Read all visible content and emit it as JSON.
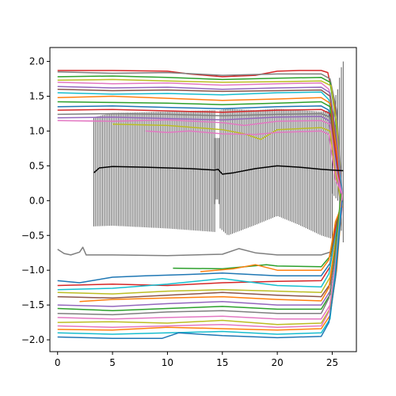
{
  "chart_data": {
    "type": "line",
    "title": "",
    "xlabel": "",
    "ylabel": "",
    "xlim": [
      -0.7,
      27.2
    ],
    "ylim": [
      -2.17,
      2.2
    ],
    "xticks": [
      0,
      5,
      10,
      15,
      20,
      25
    ],
    "yticks": [
      -2.0,
      -1.5,
      -1.0,
      -0.5,
      0.0,
      0.5,
      1.0,
      1.5,
      2.0
    ],
    "xtick_labels": [
      "0",
      "5",
      "10",
      "15",
      "20",
      "25"
    ],
    "ytick_labels": [
      "−2.0",
      "−1.5",
      "−1.0",
      "−0.5",
      "0.0",
      "0.5",
      "1.0",
      "1.5",
      "2.0"
    ],
    "grid": false,
    "legend": "none",
    "palette": [
      "#1f77b4",
      "#ff7f0e",
      "#2ca02c",
      "#d62728",
      "#9467bd",
      "#8c564b",
      "#e377c2",
      "#7f7f7f",
      "#bcbd22",
      "#17becf"
    ],
    "series": [
      {
        "color": "#d62728",
        "x": [
          0,
          5,
          10,
          12,
          15,
          18,
          20,
          22,
          24,
          24.6,
          25.2,
          25.8
        ],
        "y": [
          1.87,
          1.87,
          1.86,
          1.82,
          1.78,
          1.8,
          1.86,
          1.87,
          1.87,
          1.84,
          1.4,
          0.2
        ]
      },
      {
        "color": "#7f7f7f",
        "x": [
          0,
          5,
          10,
          15,
          20,
          24,
          24.8,
          25.4,
          25.9
        ],
        "y": [
          1.85,
          1.83,
          1.84,
          1.8,
          1.82,
          1.82,
          1.75,
          1.3,
          0.1
        ]
      },
      {
        "color": "#2ca02c",
        "x": [
          0,
          5,
          10,
          15,
          20,
          24,
          24.8,
          25.3,
          25.8
        ],
        "y": [
          1.78,
          1.79,
          1.77,
          1.74,
          1.76,
          1.77,
          1.7,
          1.2,
          -0.1
        ]
      },
      {
        "color": "#bcbd22",
        "x": [
          0,
          5,
          10,
          15,
          20,
          24,
          24.9,
          25.4,
          25.9
        ],
        "y": [
          1.73,
          1.74,
          1.72,
          1.7,
          1.71,
          1.72,
          1.65,
          1.1,
          0.0
        ]
      },
      {
        "color": "#e377c2",
        "x": [
          0,
          5,
          10,
          15,
          20,
          24,
          24.7,
          25.3,
          25.8
        ],
        "y": [
          1.7,
          1.68,
          1.69,
          1.66,
          1.68,
          1.69,
          1.6,
          1.0,
          -0.2
        ]
      },
      {
        "color": "#9467bd",
        "x": [
          0,
          5,
          10,
          15,
          20,
          24,
          24.8,
          25.4,
          25.9
        ],
        "y": [
          1.64,
          1.62,
          1.63,
          1.6,
          1.62,
          1.63,
          1.55,
          0.9,
          0.1
        ]
      },
      {
        "color": "#8c564b",
        "x": [
          0,
          5,
          10,
          15,
          20,
          24,
          24.8,
          25.3,
          25.8
        ],
        "y": [
          1.6,
          1.58,
          1.59,
          1.57,
          1.58,
          1.59,
          1.5,
          0.9,
          0.0
        ]
      },
      {
        "color": "#17becf",
        "x": [
          0,
          5,
          10,
          15,
          20,
          24,
          24.7,
          25.3,
          25.9
        ],
        "y": [
          1.55,
          1.53,
          1.54,
          1.52,
          1.55,
          1.56,
          1.45,
          0.8,
          0.1
        ]
      },
      {
        "color": "#ff7f0e",
        "x": [
          0,
          5,
          10,
          15,
          20,
          24,
          24.8,
          25.4,
          25.9
        ],
        "y": [
          1.48,
          1.5,
          1.47,
          1.44,
          1.46,
          1.48,
          1.4,
          0.7,
          -0.1
        ]
      },
      {
        "color": "#2ca02c",
        "x": [
          0,
          5,
          10,
          15,
          20,
          24,
          24.8,
          25.3,
          25.8
        ],
        "y": [
          1.42,
          1.41,
          1.4,
          1.38,
          1.4,
          1.42,
          1.35,
          0.7,
          0.0
        ]
      },
      {
        "color": "#1f77b4",
        "x": [
          0,
          5,
          10,
          15,
          20,
          24,
          24.7,
          25.3,
          25.9
        ],
        "y": [
          1.35,
          1.36,
          1.34,
          1.32,
          1.35,
          1.36,
          1.3,
          0.6,
          0.1
        ]
      },
      {
        "color": "#d62728",
        "x": [
          0,
          5,
          10,
          15,
          20,
          24,
          24.8,
          25.4,
          25.9
        ],
        "y": [
          1.3,
          1.31,
          1.29,
          1.27,
          1.3,
          1.31,
          1.25,
          0.6,
          0.0
        ]
      },
      {
        "color": "#7f7f7f",
        "x": [
          0,
          5,
          10,
          15,
          20,
          24,
          24.8,
          25.3,
          25.8
        ],
        "y": [
          1.24,
          1.25,
          1.24,
          1.22,
          1.24,
          1.25,
          1.2,
          0.5,
          -0.1
        ]
      },
      {
        "color": "#9467bd",
        "x": [
          0,
          5,
          10,
          15,
          20,
          24,
          24.7,
          25.3,
          25.9
        ],
        "y": [
          1.19,
          1.2,
          1.18,
          1.16,
          1.2,
          1.21,
          1.15,
          0.5,
          0.0
        ]
      },
      {
        "color": "#e377c2",
        "x": [
          0,
          5,
          10,
          15,
          17,
          20,
          24,
          24.8,
          25.4,
          25.9
        ],
        "y": [
          1.15,
          1.14,
          1.16,
          1.12,
          1.08,
          1.14,
          1.15,
          1.1,
          0.4,
          0.1
        ]
      },
      {
        "color": "#bcbd22",
        "x": [
          5,
          10,
          15,
          17,
          18.5,
          20,
          24,
          24.8,
          25.3,
          25.8
        ],
        "y": [
          1.1,
          1.08,
          1.02,
          0.96,
          0.88,
          1.02,
          1.05,
          1.0,
          0.4,
          0.0
        ]
      },
      {
        "color": "#e377c2",
        "x": [
          8,
          10,
          12,
          15,
          18,
          20,
          24,
          24.7,
          25.3,
          25.9
        ],
        "y": [
          1.0,
          0.98,
          1.0,
          0.96,
          0.95,
          0.98,
          1.0,
          0.95,
          0.3,
          0.1
        ]
      },
      {
        "color": "#000000",
        "x": [
          3.3,
          3.8,
          5,
          8,
          12,
          14.3,
          14.6,
          15,
          16,
          18,
          20,
          22,
          24,
          25,
          26
        ],
        "y": [
          0.4,
          0.47,
          0.49,
          0.48,
          0.46,
          0.44,
          0.45,
          0.38,
          0.4,
          0.46,
          0.5,
          0.48,
          0.45,
          0.44,
          0.43
        ]
      },
      {
        "color": "#7f7f7f",
        "x": [
          0,
          0.6,
          1.2,
          2.0,
          2.3,
          2.6,
          5,
          10,
          15,
          16.5,
          18,
          20,
          24,
          25,
          25.5,
          25.9
        ],
        "y": [
          -0.7,
          -0.76,
          -0.78,
          -0.74,
          -0.67,
          -0.78,
          -0.78,
          -0.79,
          -0.77,
          -0.69,
          -0.75,
          -0.78,
          -0.78,
          -0.73,
          -0.3,
          0.0
        ]
      },
      {
        "color": "#2ca02c",
        "x": [
          10.5,
          15,
          19,
          20,
          24,
          24.8,
          25.4,
          25.9
        ],
        "y": [
          -0.97,
          -0.98,
          -0.92,
          -0.94,
          -0.95,
          -0.8,
          -0.3,
          0.0
        ]
      },
      {
        "color": "#ff7f0e",
        "x": [
          13,
          16,
          18,
          20,
          24,
          24.7,
          25.3,
          25.8
        ],
        "y": [
          -1.02,
          -0.98,
          -0.92,
          -1.0,
          -1.0,
          -0.85,
          -0.3,
          -0.1
        ]
      },
      {
        "color": "#1f77b4",
        "x": [
          0,
          2,
          5,
          8,
          12,
          15,
          20,
          24,
          24.8,
          25.4,
          25.9
        ],
        "y": [
          -1.15,
          -1.18,
          -1.1,
          -1.08,
          -1.06,
          -1.04,
          -1.08,
          -1.08,
          -0.9,
          -0.4,
          0.0
        ]
      },
      {
        "color": "#d62728",
        "x": [
          0,
          5,
          10,
          15,
          20,
          24,
          24.8,
          25.3,
          25.8
        ],
        "y": [
          -1.22,
          -1.2,
          -1.22,
          -1.18,
          -1.16,
          -1.15,
          -0.95,
          -0.4,
          -0.1
        ]
      },
      {
        "color": "#17becf",
        "x": [
          0,
          5,
          10,
          15,
          20,
          24,
          24.7,
          25.3,
          25.9
        ],
        "y": [
          -1.28,
          -1.26,
          -1.2,
          -1.12,
          -1.22,
          -1.24,
          -1.05,
          -0.5,
          0.0
        ]
      },
      {
        "color": "#bcbd22",
        "x": [
          0,
          5,
          10,
          15,
          20,
          24,
          24.8,
          25.4,
          25.9
        ],
        "y": [
          -1.32,
          -1.34,
          -1.3,
          -1.28,
          -1.3,
          -1.32,
          -1.1,
          -0.5,
          0.1
        ]
      },
      {
        "color": "#8c564b",
        "x": [
          0,
          5,
          10,
          15,
          20,
          24,
          24.8,
          25.3,
          25.8
        ],
        "y": [
          -1.38,
          -1.4,
          -1.36,
          -1.32,
          -1.36,
          -1.38,
          -1.2,
          -0.6,
          0.0
        ]
      },
      {
        "color": "#ff7f0e",
        "x": [
          2,
          5,
          10,
          15,
          20,
          24,
          24.7,
          25.3,
          25.9
        ],
        "y": [
          -1.45,
          -1.42,
          -1.4,
          -1.38,
          -1.42,
          -1.44,
          -1.25,
          -0.6,
          -0.1
        ]
      },
      {
        "color": "#9467bd",
        "x": [
          0,
          5,
          10,
          15,
          20,
          24,
          24.8,
          25.4,
          25.9
        ],
        "y": [
          -1.5,
          -1.52,
          -1.48,
          -1.45,
          -1.5,
          -1.5,
          -1.3,
          -0.7,
          0.0
        ]
      },
      {
        "color": "#2ca02c",
        "x": [
          0,
          5,
          10,
          15,
          20,
          24,
          24.8,
          25.3,
          25.8
        ],
        "y": [
          -1.55,
          -1.58,
          -1.55,
          -1.52,
          -1.56,
          -1.56,
          -1.35,
          -0.7,
          0.1
        ]
      },
      {
        "color": "#7f7f7f",
        "x": [
          0,
          5,
          10,
          15,
          20,
          24,
          24.7,
          25.3,
          25.9
        ],
        "y": [
          -1.62,
          -1.64,
          -1.6,
          -1.58,
          -1.62,
          -1.62,
          -1.4,
          -0.8,
          0.0
        ]
      },
      {
        "color": "#e377c2",
        "x": [
          0,
          5,
          10,
          15,
          20,
          24,
          24.8,
          25.4,
          25.9
        ],
        "y": [
          -1.68,
          -1.7,
          -1.68,
          -1.66,
          -1.7,
          -1.7,
          -1.5,
          -0.8,
          -0.1
        ]
      },
      {
        "color": "#bcbd22",
        "x": [
          0,
          5,
          10,
          15,
          20,
          24,
          24.8,
          25.3,
          25.8
        ],
        "y": [
          -1.75,
          -1.74,
          -1.76,
          -1.72,
          -1.78,
          -1.76,
          -1.55,
          -0.9,
          0.0
        ]
      },
      {
        "color": "#e377c2",
        "x": [
          0,
          5,
          10,
          15,
          20,
          24,
          24.7,
          25.3,
          25.9
        ],
        "y": [
          -1.8,
          -1.82,
          -1.8,
          -1.78,
          -1.82,
          -1.8,
          -1.6,
          -0.9,
          0.1
        ]
      },
      {
        "color": "#ff7f0e",
        "x": [
          0,
          5,
          10,
          15,
          20,
          24,
          24.8,
          25.4,
          25.9
        ],
        "y": [
          -1.85,
          -1.86,
          -1.82,
          -1.84,
          -1.86,
          -1.84,
          -1.65,
          -1.0,
          0.0
        ]
      },
      {
        "color": "#17becf",
        "x": [
          0,
          5,
          10,
          15,
          20,
          24,
          24.8,
          25.3,
          25.8
        ],
        "y": [
          -1.9,
          -1.92,
          -1.9,
          -1.88,
          -1.92,
          -1.9,
          -1.7,
          -1.0,
          -0.1
        ]
      },
      {
        "color": "#1f77b4",
        "x": [
          0,
          5,
          9.5,
          11,
          15,
          20,
          24,
          24.7,
          25.3,
          25.9
        ],
        "y": [
          -1.96,
          -1.98,
          -1.98,
          -1.9,
          -1.94,
          -1.97,
          -1.95,
          -1.75,
          -1.1,
          0.0
        ]
      }
    ],
    "band": {
      "color": "#000000",
      "x_start": 3.3,
      "x_end": 26.0,
      "segments": [
        {
          "x": [
            3.3,
            5,
            10,
            14.3
          ],
          "upper": [
            1.2,
            1.26,
            1.28,
            1.3
          ],
          "lower": [
            -0.37,
            -0.36,
            -0.4,
            -0.45
          ]
        },
        {
          "x": [
            14.3,
            14.5,
            14.7
          ],
          "upper": [
            0.9,
            0.9,
            0.9
          ],
          "lower": [
            -0.05,
            0.05,
            -0.05
          ]
        },
        {
          "x": [
            14.8,
            15.5,
            18,
            20,
            22,
            24,
            25.0
          ],
          "upper": [
            1.3,
            1.32,
            1.3,
            1.32,
            1.3,
            1.28,
            1.3
          ],
          "lower": [
            -0.4,
            -0.5,
            -0.35,
            -0.22,
            -0.35,
            -0.5,
            -0.55
          ]
        },
        {
          "x": [
            25.0,
            25.5,
            25.8,
            26.0
          ],
          "upper": [
            1.35,
            1.6,
            1.9,
            2.0
          ],
          "lower": [
            0.1,
            0.0,
            -0.4,
            -0.6
          ]
        }
      ]
    }
  }
}
